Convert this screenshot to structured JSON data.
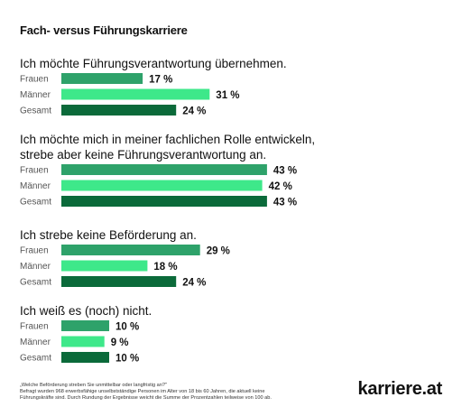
{
  "title": "Fach- versus Führungskarriere",
  "colors": {
    "Frauen": "#2ea26a",
    "Männer": "#3ee88a",
    "Gesamt": "#0b6a3a"
  },
  "chart_data": {
    "type": "bar",
    "orientation": "horizontal",
    "value_format": "{v} %",
    "categories": [
      "Frauen",
      "Männer",
      "Gesamt"
    ],
    "groups": [
      {
        "question_lines": [
          "Ich möchte Führungsverantwortung übernehmen."
        ],
        "values": [
          17,
          31,
          24
        ]
      },
      {
        "question_lines": [
          "Ich möchte mich in meiner fachlichen Rolle entwickeln,",
          "strebe aber keine Führungsverantwortung an."
        ],
        "values": [
          43,
          42,
          43
        ]
      },
      {
        "question_lines": [
          "Ich strebe keine Beförderung an."
        ],
        "values": [
          29,
          18,
          24
        ]
      },
      {
        "question_lines": [
          "Ich weiß es (noch) nicht."
        ],
        "values": [
          10,
          9,
          10
        ]
      }
    ]
  },
  "footnote": {
    "line1": "„Welche Beförderung streben Sie unmittelbar oder langfristig an?\"",
    "line2": "Befragt wurden 968 erwerbsfähige unselbstständige Personen im Alter von 18 bis 60 Jahren, die aktuell keine",
    "line3": "Führungskräfte sind. Durch Rundung der Ergebnisse weicht die Summe der Prozentzahlen teilweise von 100 ab."
  },
  "brand": "karriere.at"
}
